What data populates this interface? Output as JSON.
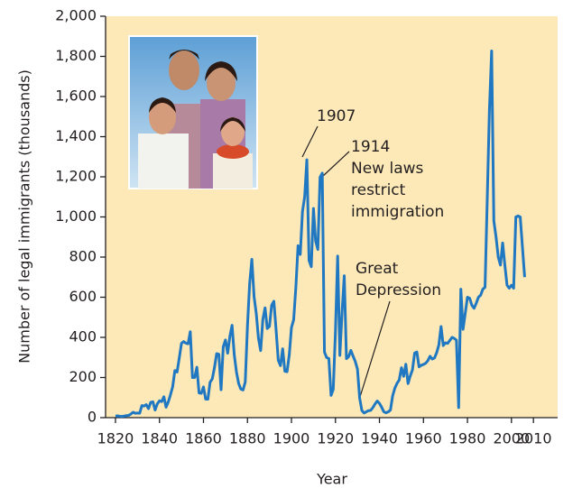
{
  "chart_data": {
    "type": "line",
    "x_label": "Year",
    "y_label": "Number of legal immigrants (thousands)",
    "x": [
      1820,
      1821,
      1822,
      1823,
      1824,
      1825,
      1826,
      1827,
      1828,
      1829,
      1830,
      1831,
      1832,
      1833,
      1834,
      1835,
      1836,
      1837,
      1838,
      1839,
      1840,
      1841,
      1842,
      1843,
      1844,
      1845,
      1846,
      1847,
      1848,
      1849,
      1850,
      1851,
      1852,
      1853,
      1854,
      1855,
      1856,
      1857,
      1858,
      1859,
      1860,
      1861,
      1862,
      1863,
      1864,
      1865,
      1866,
      1867,
      1868,
      1869,
      1870,
      1871,
      1872,
      1873,
      1874,
      1875,
      1876,
      1877,
      1878,
      1879,
      1880,
      1881,
      1882,
      1883,
      1884,
      1885,
      1886,
      1887,
      1888,
      1889,
      1890,
      1891,
      1892,
      1893,
      1894,
      1895,
      1896,
      1897,
      1898,
      1899,
      1900,
      1901,
      1902,
      1903,
      1904,
      1905,
      1906,
      1907,
      1908,
      1909,
      1910,
      1911,
      1912,
      1913,
      1914,
      1915,
      1916,
      1917,
      1918,
      1919,
      1920,
      1921,
      1922,
      1923,
      1924,
      1925,
      1926,
      1927,
      1928,
      1929,
      1930,
      1931,
      1932,
      1933,
      1934,
      1935,
      1936,
      1937,
      1938,
      1939,
      1940,
      1941,
      1942,
      1943,
      1944,
      1945,
      1946,
      1947,
      1948,
      1949,
      1950,
      1951,
      1952,
      1953,
      1954,
      1955,
      1956,
      1957,
      1958,
      1959,
      1960,
      1961,
      1962,
      1963,
      1964,
      1965,
      1966,
      1967,
      1968,
      1969,
      1970,
      1971,
      1972,
      1973,
      1974,
      1975,
      1976,
      1977,
      1978,
      1979,
      1980,
      1981,
      1982,
      1983,
      1984,
      1985,
      1986,
      1987,
      1988,
      1989,
      1990,
      1991,
      1992,
      1993,
      1994,
      1995,
      1996,
      1997,
      1998,
      1999,
      2000,
      2001,
      2002,
      2003,
      2004,
      2005,
      2006
    ],
    "values": [
      8,
      9,
      7,
      6,
      8,
      10,
      11,
      18,
      27,
      22,
      23,
      22,
      60,
      58,
      65,
      45,
      76,
      79,
      38,
      68,
      84,
      80,
      104,
      52,
      78,
      114,
      154,
      235,
      227,
      297,
      370,
      379,
      371,
      368,
      428,
      200,
      200,
      251,
      123,
      121,
      153,
      92,
      92,
      176,
      193,
      249,
      319,
      316,
      139,
      353,
      387,
      321,
      405,
      460,
      313,
      227,
      170,
      142,
      138,
      178,
      457,
      669,
      789,
      603,
      519,
      395,
      334,
      490,
      547,
      444,
      455,
      560,
      580,
      440,
      286,
      259,
      343,
      231,
      229,
      312,
      449,
      488,
      649,
      857,
      813,
      1026,
      1101,
      1285,
      783,
      752,
      1042,
      879,
      838,
      1198,
      1218,
      327,
      299,
      295,
      111,
      141,
      430,
      805,
      310,
      523,
      707,
      294,
      304,
      335,
      307,
      280,
      242,
      97,
      36,
      23,
      29,
      35,
      36,
      50,
      68,
      83,
      71,
      52,
      29,
      24,
      29,
      38,
      109,
      147,
      171,
      188,
      249,
      206,
      266,
      170,
      208,
      238,
      322,
      327,
      253,
      261,
      265,
      271,
      284,
      306,
      292,
      297,
      323,
      362,
      454,
      359,
      373,
      370,
      385,
      400,
      395,
      386,
      50,
      640,
      440,
      520,
      600,
      595,
      560,
      545,
      570,
      600,
      610,
      640,
      650,
      1090,
      1536,
      1827,
      980,
      900,
      800,
      760,
      870,
      760,
      660,
      645,
      660,
      645,
      1000,
      1005,
      1000,
      850,
      700
    ],
    "color": "#1f78c1",
    "xlim": [
      1815.5,
      2021
    ],
    "xticks": [
      1820,
      1840,
      1860,
      1880,
      1900,
      1920,
      1940,
      1960,
      1980,
      2000,
      2010
    ],
    "ylim": [
      0,
      2000
    ],
    "yticks": [
      0,
      200,
      400,
      600,
      800,
      {
        "value": 1000,
        "label": "1,000"
      },
      {
        "value": 1200,
        "label": "1,200"
      },
      {
        "value": 1400,
        "label": "1,400"
      },
      {
        "value": 1600,
        "label": "1,600"
      },
      {
        "value": 1800,
        "label": "1,800"
      },
      {
        "value": 2000,
        "label": "2,000"
      }
    ],
    "background": "#fde9b8",
    "annotations": [
      {
        "lines": [
          "1907"
        ]
      },
      {
        "lines": [
          "1914",
          "New laws",
          "restrict",
          "immigration"
        ]
      },
      {
        "lines": [
          "Great",
          "Depression"
        ]
      }
    ]
  }
}
